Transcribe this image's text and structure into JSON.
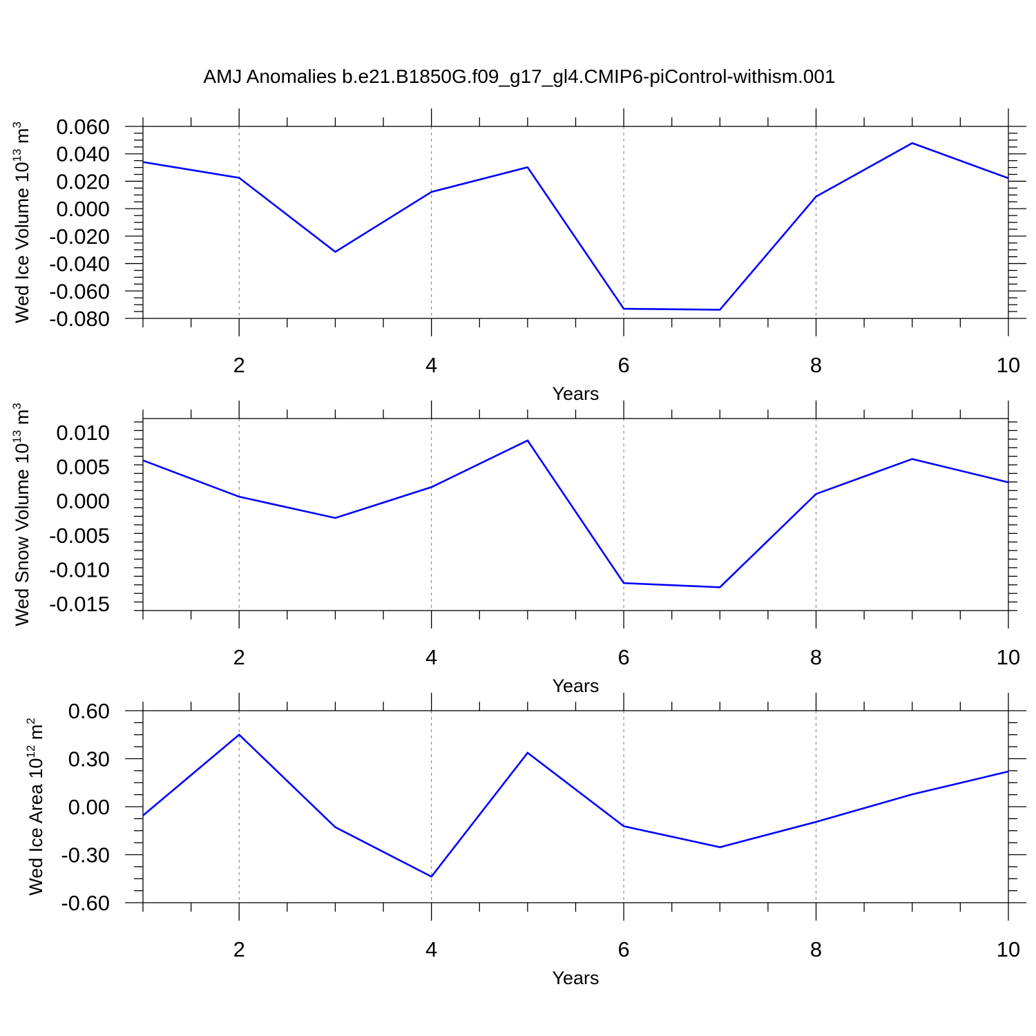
{
  "title": "AMJ Anomalies b.e21.B1850G.f09_g17_gl4.CMIP6-piControl-withism.001",
  "colors": {
    "series": "#0000ff",
    "grid": "#777777",
    "axis": "#000000"
  },
  "chart_data": [
    {
      "type": "line",
      "xlabel": "Years",
      "ylabel": {
        "main": "Wed Ice Volume 10",
        "sup": "13",
        "unit": " m",
        "unit_sup": "3"
      },
      "x": [
        1,
        2,
        3,
        4,
        5,
        6,
        7,
        8,
        9,
        10
      ],
      "xlim": [
        1,
        10
      ],
      "xticks": [
        "2",
        "4",
        "6",
        "8",
        "10"
      ],
      "xtick_values": [
        2,
        4,
        6,
        8,
        10
      ],
      "ylim": [
        -0.08,
        0.06
      ],
      "yticks": [
        "0.060",
        "0.040",
        "0.020",
        "0.000",
        "-0.020",
        "-0.040",
        "-0.060",
        "-0.080"
      ],
      "ytick_values": [
        0.06,
        0.04,
        0.02,
        0.0,
        -0.02,
        -0.04,
        -0.06,
        -0.08
      ],
      "grid": "dashed vertical lines at major x ticks",
      "series": [
        {
          "values": [
            0.034,
            0.0225,
            -0.0315,
            0.0122,
            0.0302,
            -0.073,
            -0.0737,
            0.0088,
            0.0478,
            0.0222
          ]
        }
      ]
    },
    {
      "type": "line",
      "xlabel": "Years",
      "ylabel": {
        "main": "Wed Snow Volume 10",
        "sup": "13",
        "unit": " m",
        "unit_sup": "3"
      },
      "x": [
        1,
        2,
        3,
        4,
        5,
        6,
        7,
        8,
        9,
        10
      ],
      "xlim": [
        1,
        10
      ],
      "xticks": [
        "2",
        "4",
        "6",
        "8",
        "10"
      ],
      "xtick_values": [
        2,
        4,
        6,
        8,
        10
      ],
      "ylim": [
        -0.016,
        0.012
      ],
      "yticks": [
        "0.010",
        "0.005",
        "0.000",
        "-0.005",
        "-0.010",
        "-0.015"
      ],
      "ytick_values": [
        0.01,
        0.005,
        0.0,
        -0.005,
        -0.01,
        -0.015
      ],
      "grid": "dashed vertical lines at major x ticks",
      "series": [
        {
          "values": [
            0.0059,
            0.0006,
            -0.0025,
            0.002,
            0.0088,
            -0.012,
            -0.0126,
            0.001,
            0.0061,
            0.0027
          ]
        }
      ]
    },
    {
      "type": "line",
      "xlabel": "Years",
      "ylabel": {
        "main": "Wed Ice Area 10",
        "sup": "12",
        "unit": " m",
        "unit_sup": "2"
      },
      "x": [
        1,
        2,
        3,
        4,
        5,
        6,
        7,
        8,
        9,
        10
      ],
      "xlim": [
        1,
        10
      ],
      "xticks": [
        "2",
        "4",
        "6",
        "8",
        "10"
      ],
      "xtick_values": [
        2,
        4,
        6,
        8,
        10
      ],
      "ylim": [
        -0.6,
        0.6
      ],
      "yticks": [
        "0.60",
        "0.30",
        "0.00",
        "-0.30",
        "-0.60"
      ],
      "ytick_values": [
        0.6,
        0.3,
        0.0,
        -0.3,
        -0.6
      ],
      "grid": "dashed vertical lines at major x ticks",
      "series": [
        {
          "values": [
            -0.055,
            0.45,
            -0.128,
            -0.437,
            0.337,
            -0.122,
            -0.253,
            -0.095,
            0.077,
            0.22
          ]
        }
      ]
    }
  ]
}
